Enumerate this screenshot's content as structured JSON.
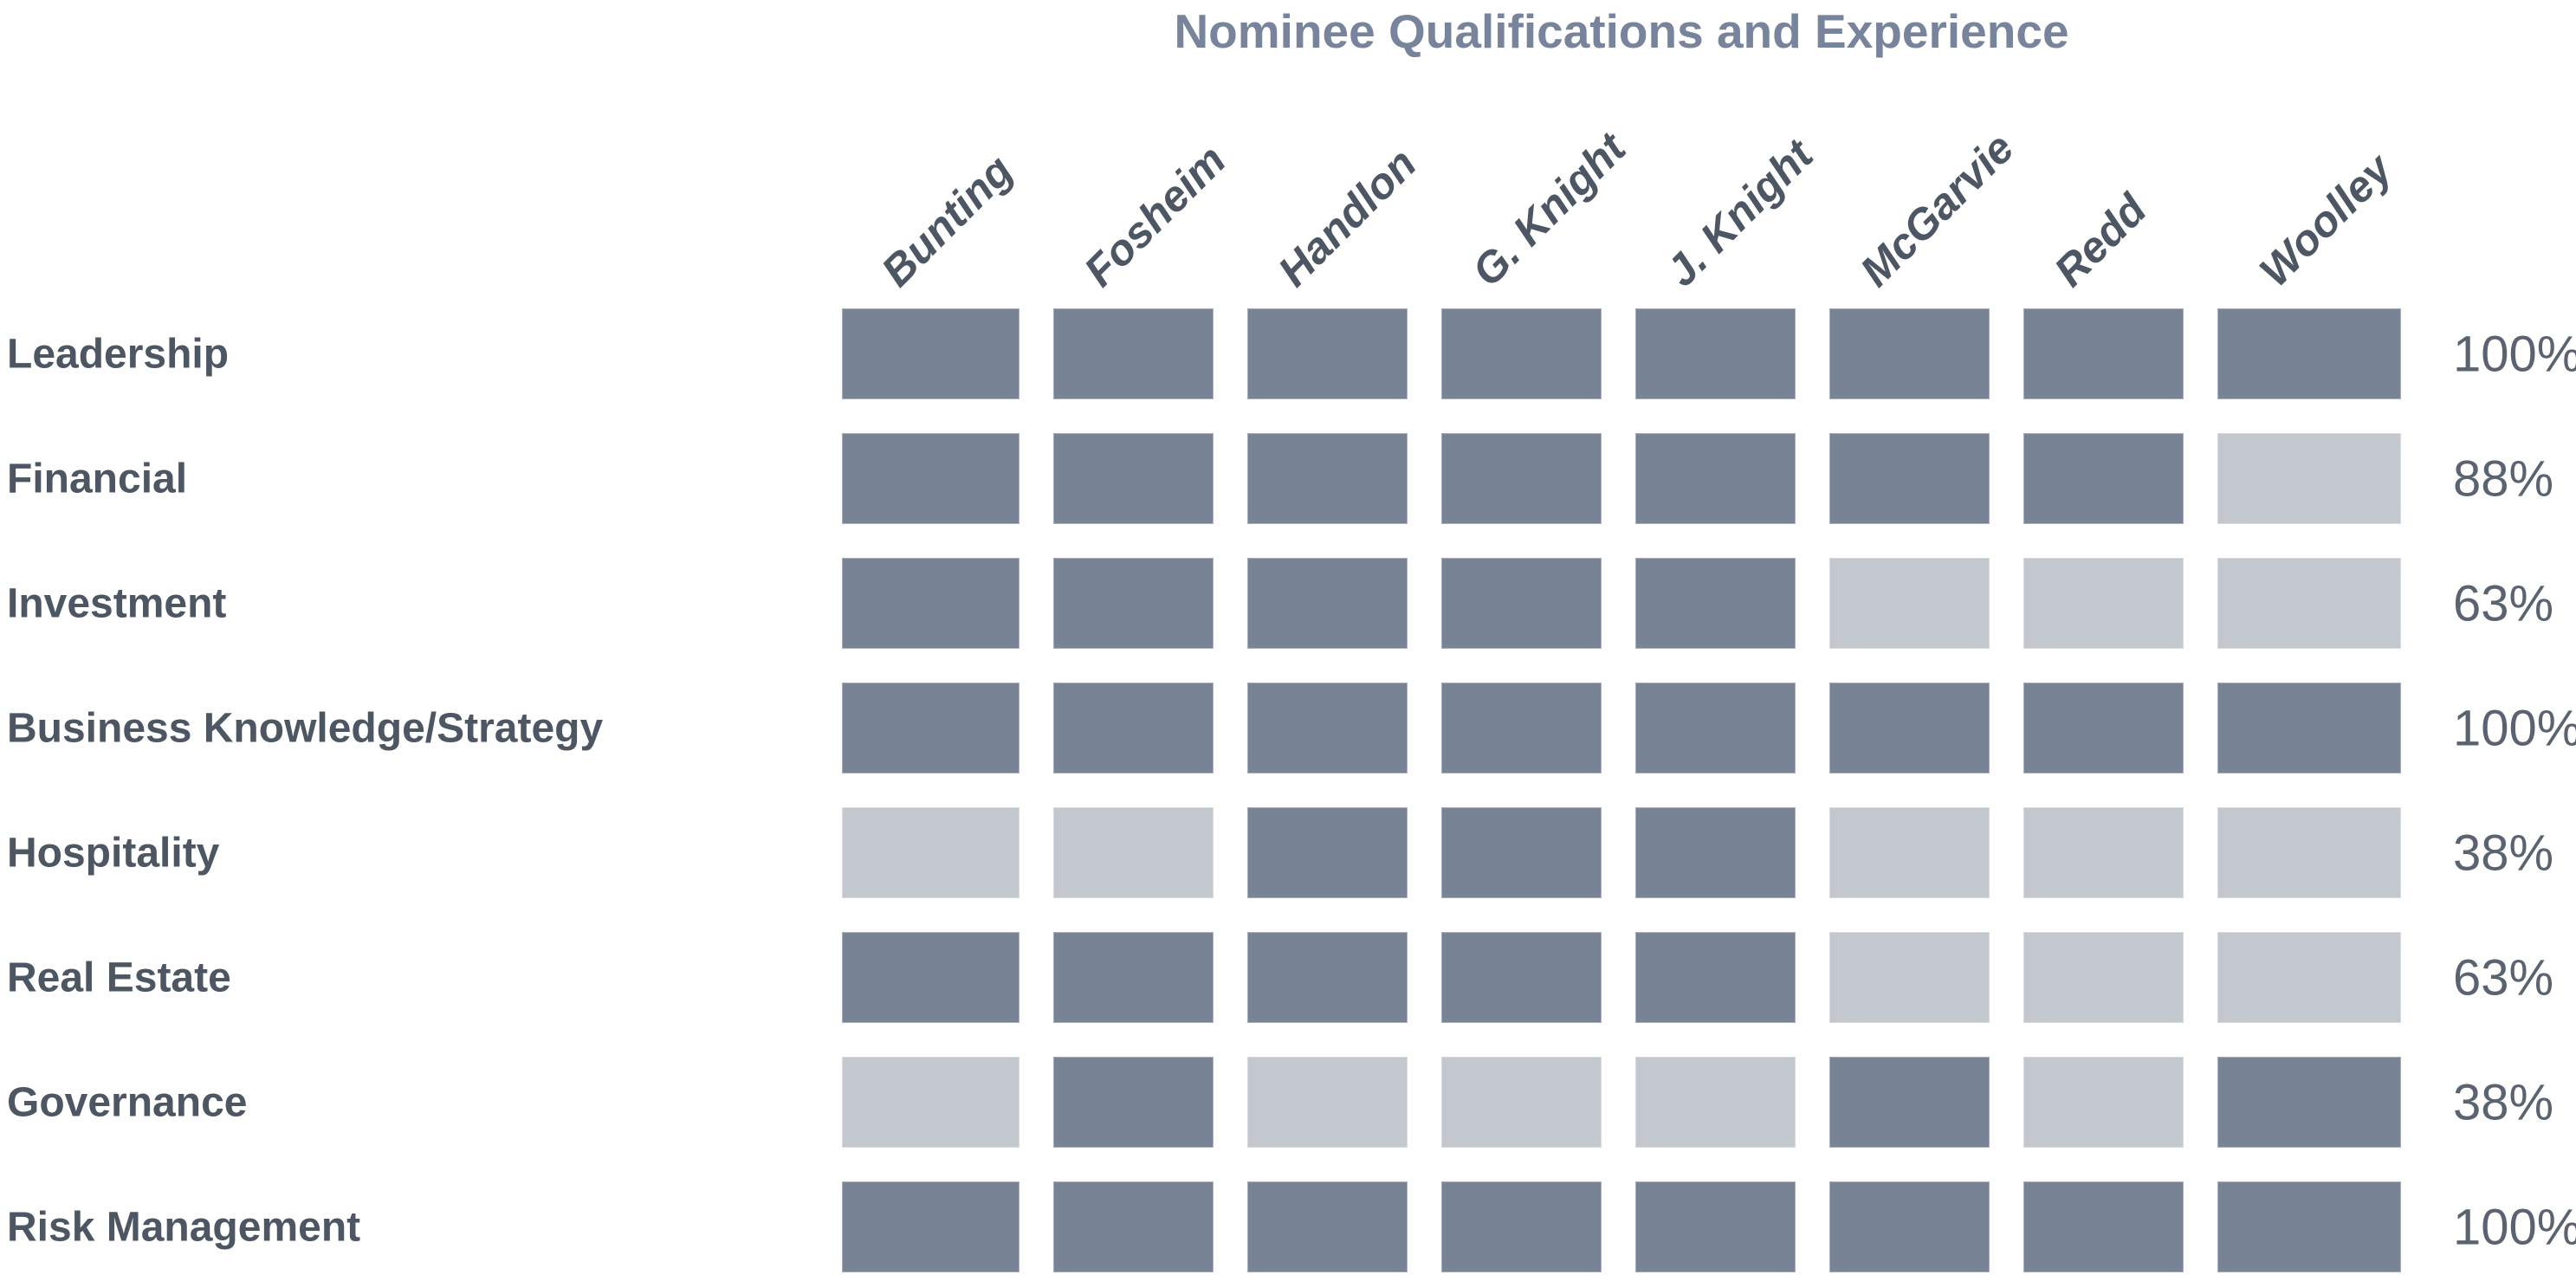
{
  "title": "Nominee Qualifications and Experience",
  "colors": {
    "qualified_cell": "#788495",
    "unqualified_cell": "#C3C7CE",
    "title_text": "#78849B",
    "label_text": "#4D5663",
    "percent_text": "#5A6370",
    "background": "#FFFFFF"
  },
  "chart_data": {
    "type": "heatmap",
    "title": "Nominee Qualifications and Experience",
    "legend_position": "none",
    "grid": "off",
    "value_encoding": "dark cell = nominee has qualification (1), light cell = does not (0)",
    "columns": [
      "Bunting",
      "Fosheim",
      "Handlon",
      "G. Knight",
      "J. Knight",
      "McGarvie",
      "Redd",
      "Woolley"
    ],
    "rows": [
      {
        "label": "Leadership",
        "values": [
          1,
          1,
          1,
          1,
          1,
          1,
          1,
          1
        ],
        "percent": "100%"
      },
      {
        "label": "Financial",
        "values": [
          1,
          1,
          1,
          1,
          1,
          1,
          1,
          0
        ],
        "percent": "88%"
      },
      {
        "label": "Investment",
        "values": [
          1,
          1,
          1,
          1,
          1,
          0,
          0,
          0
        ],
        "percent": "63%"
      },
      {
        "label": "Business Knowledge/Strategy",
        "values": [
          1,
          1,
          1,
          1,
          1,
          1,
          1,
          1
        ],
        "percent": "100%"
      },
      {
        "label": "Hospitality",
        "values": [
          0,
          0,
          1,
          1,
          1,
          0,
          0,
          0
        ],
        "percent": "38%"
      },
      {
        "label": "Real Estate",
        "values": [
          1,
          1,
          1,
          1,
          1,
          0,
          0,
          0
        ],
        "percent": "63%"
      },
      {
        "label": "Governance",
        "values": [
          0,
          1,
          0,
          0,
          0,
          1,
          0,
          1
        ],
        "percent": "38%"
      },
      {
        "label": "Risk Management",
        "values": [
          1,
          1,
          1,
          1,
          1,
          1,
          1,
          1
        ],
        "percent": "100%"
      }
    ]
  }
}
